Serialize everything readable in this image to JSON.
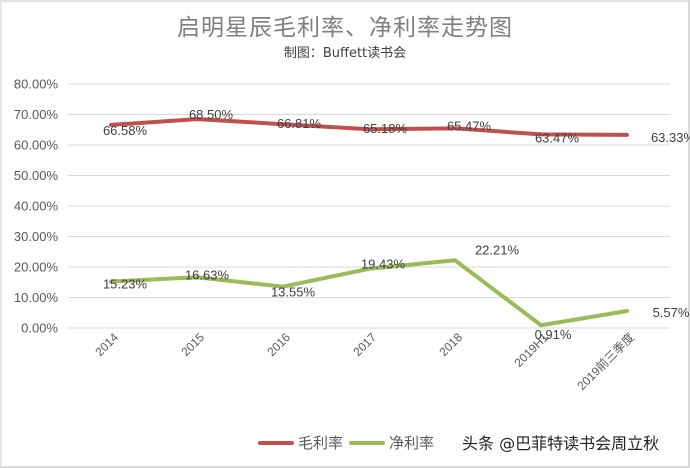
{
  "title": "启明星辰毛利率、净利率走势图",
  "subtitle": "制图：Buffett读书会",
  "watermark": "头条 @巴菲特读书会周立秋",
  "legend": [
    {
      "label": "毛利率",
      "color": "#c0504d"
    },
    {
      "label": "净利率",
      "color": "#9bbb59"
    }
  ],
  "chart_data": {
    "type": "line",
    "title": "启明星辰毛利率、净利率走势图",
    "subtitle": "制图：Buffett读书会",
    "xlabel": "",
    "ylabel": "",
    "categories": [
      "2014",
      "2015",
      "2016",
      "2017",
      "2018",
      "2019H1",
      "2019前三季度"
    ],
    "series": [
      {
        "name": "毛利率",
        "color": "#c0504d",
        "values": [
          66.58,
          68.5,
          66.81,
          65.18,
          65.47,
          63.47,
          63.33
        ],
        "labels": [
          "66.58%",
          "68.50%",
          "66.81%",
          "65.18%",
          "65.47%",
          "63.47%",
          "63.33%"
        ]
      },
      {
        "name": "净利率",
        "color": "#9bbb59",
        "values": [
          15.23,
          16.63,
          13.55,
          19.43,
          22.21,
          0.91,
          5.57
        ],
        "labels": [
          "15.23%",
          "16.63%",
          "13.55%",
          "19.43%",
          "22.21%",
          "0.91%",
          "5.57%"
        ]
      }
    ],
    "yticks": [
      "0.00%",
      "10.00%",
      "20.00%",
      "30.00%",
      "40.00%",
      "50.00%",
      "60.00%",
      "70.00%",
      "80.00%"
    ],
    "ylim": [
      0,
      80
    ],
    "grid": true,
    "legend_position": "bottom"
  }
}
